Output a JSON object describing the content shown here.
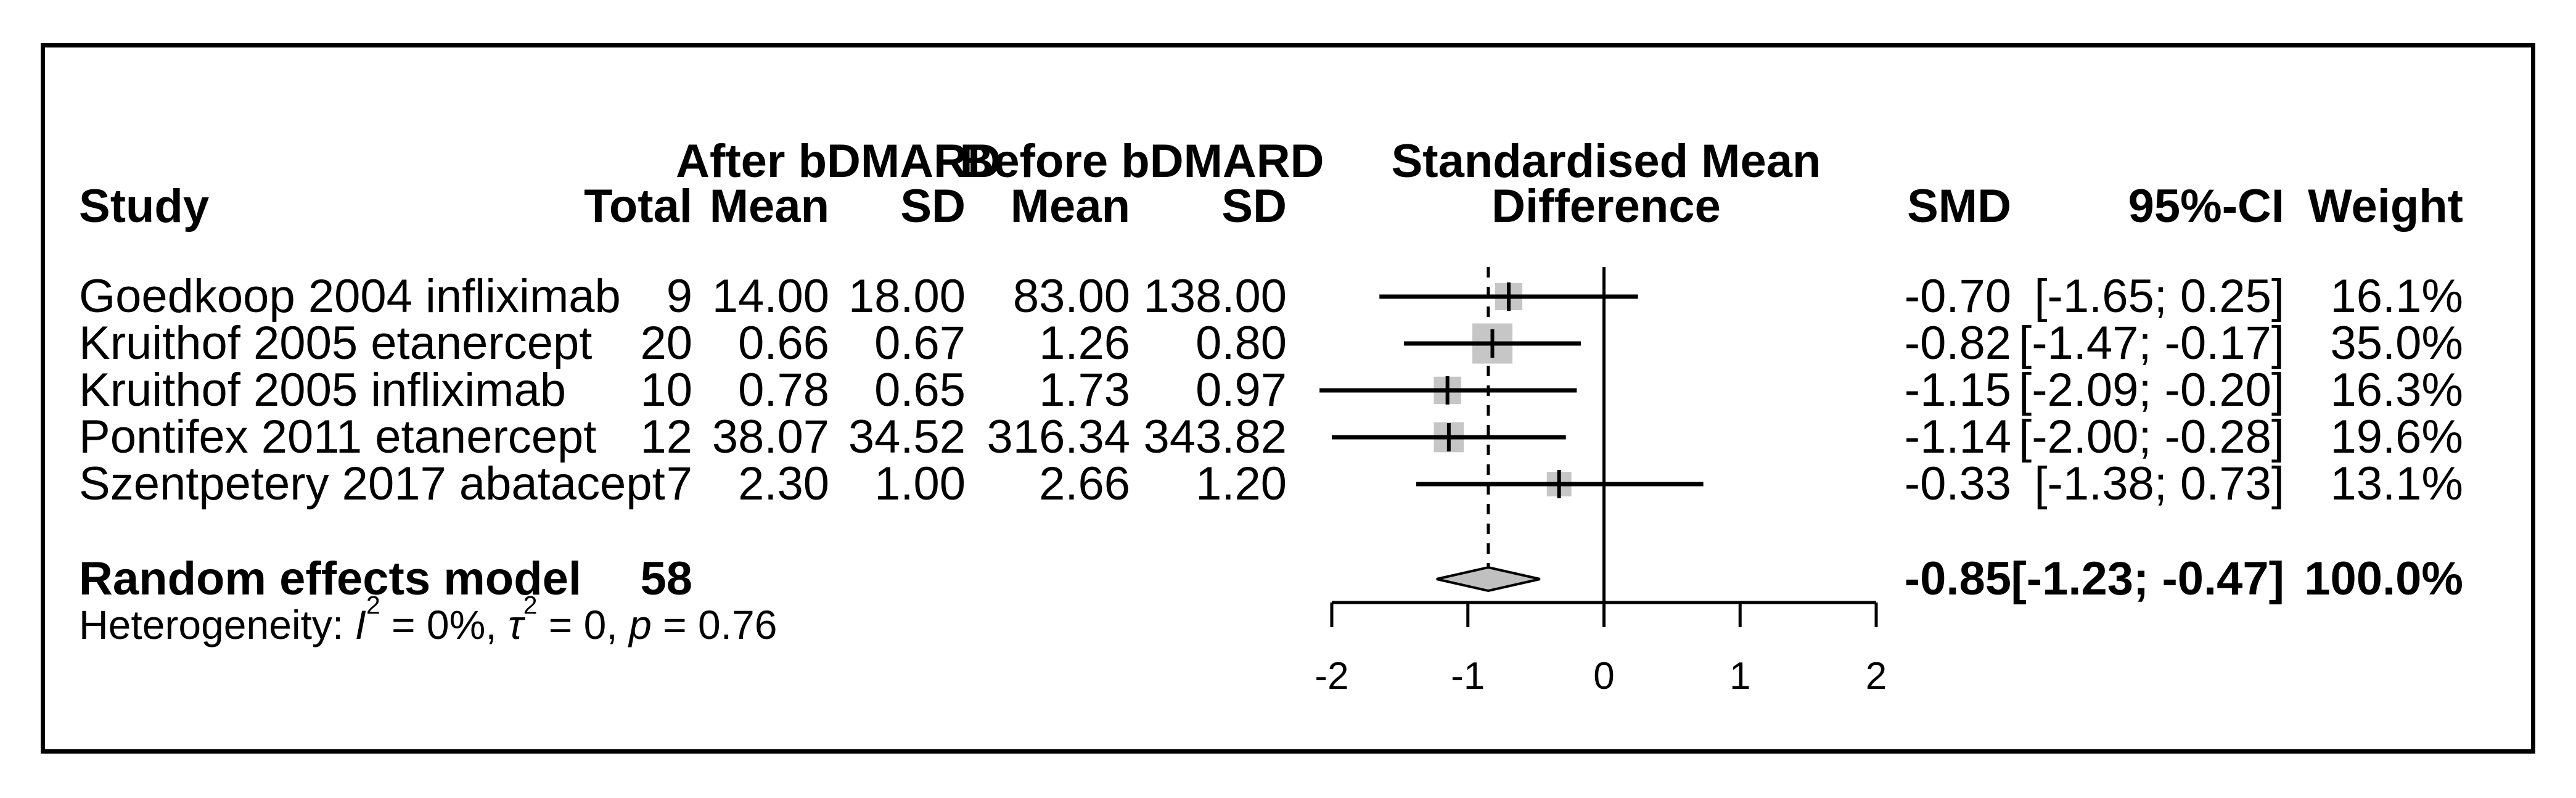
{
  "header": {
    "group_after": "After bDMARD",
    "group_before": "Before bDMARD",
    "plot_title_line1": "Standardised Mean",
    "plot_title_line2": "Difference",
    "col_study": "Study",
    "col_total": "Total",
    "col_mean_after": "Mean",
    "col_sd_after": "SD",
    "col_mean_before": "Mean",
    "col_sd_before": "SD",
    "col_smd": "SMD",
    "col_ci": "95%-CI",
    "col_weight": "Weight"
  },
  "colors": {
    "text": "#000000",
    "square_fill": "#c6c6c6",
    "diamond_fill": "#c0c0c0",
    "line": "#000000"
  },
  "chart_data": {
    "type": "forest",
    "title": "Standardised Mean Difference",
    "xlabel": "",
    "xlim": [
      -2,
      2
    ],
    "x_ticks": [
      -2,
      -1,
      0,
      1,
      2
    ],
    "grid": false,
    "reference_line": 0,
    "pooled_dashed_line": -0.85,
    "studies": [
      {
        "name": "Goedkoop 2004 infliximab",
        "total": "9",
        "mean_after": "14.00",
        "sd_after": "18.00",
        "mean_before": "83.00",
        "sd_before": "138.00",
        "smd": -0.7,
        "ci": [
          -1.65,
          0.25
        ],
        "smd_label": "-0.70",
        "ci_label": "[-1.65; 0.25]",
        "weight": 16.1,
        "weight_label": "16.1%"
      },
      {
        "name": "Kruithof 2005 etanercept",
        "total": "20",
        "mean_after": "0.66",
        "sd_after": "0.67",
        "mean_before": "1.26",
        "sd_before": "0.80",
        "smd": -0.82,
        "ci": [
          -1.47,
          -0.17
        ],
        "smd_label": "-0.82",
        "ci_label": "[-1.47; -0.17]",
        "weight": 35.0,
        "weight_label": "35.0%"
      },
      {
        "name": "Kruithof 2005 infliximab",
        "total": "10",
        "mean_after": "0.78",
        "sd_after": "0.65",
        "mean_before": "1.73",
        "sd_before": "0.97",
        "smd": -1.15,
        "ci": [
          -2.09,
          -0.2
        ],
        "smd_label": "-1.15",
        "ci_label": "[-2.09; -0.20]",
        "weight": 16.3,
        "weight_label": "16.3%"
      },
      {
        "name": "Pontifex 2011 etanercept",
        "total": "12",
        "mean_after": "38.07",
        "sd_after": "34.52",
        "mean_before": "316.34",
        "sd_before": "343.82",
        "smd": -1.14,
        "ci": [
          -2.0,
          -0.28
        ],
        "smd_label": "-1.14",
        "ci_label": "[-2.00; -0.28]",
        "weight": 19.6,
        "weight_label": "19.6%"
      },
      {
        "name": "Szentpetery 2017 abatacept",
        "total": "7",
        "mean_after": "2.30",
        "sd_after": "1.00",
        "mean_before": "2.66",
        "sd_before": "1.20",
        "smd": -0.33,
        "ci": [
          -1.38,
          0.73
        ],
        "smd_label": "-0.33",
        "ci_label": "[-1.38; 0.73]",
        "weight": 13.1,
        "weight_label": "13.1%"
      }
    ],
    "pooled": {
      "label": "Random effects model",
      "total": "58",
      "smd": -0.85,
      "ci": [
        -1.23,
        -0.47
      ],
      "smd_label": "-0.85",
      "ci_label": "[-1.23; -0.47]",
      "weight_label": "100.0%"
    },
    "heterogeneity": {
      "prefix": "Heterogeneity: ",
      "terms": [
        {
          "sym": "I",
          "sup": "2",
          "rest": " = 0%, "
        },
        {
          "sym": "τ",
          "sup": "2",
          "rest": " = 0, "
        },
        {
          "sym": "p",
          "sup": "",
          "rest": " = 0.76"
        }
      ]
    }
  }
}
